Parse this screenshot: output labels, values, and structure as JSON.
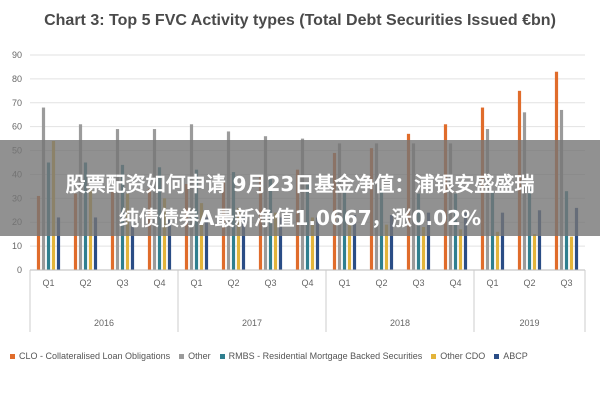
{
  "chart_data": {
    "type": "bar",
    "title": "Chart 3: Top 5 FVC Activity types (Total Debt Securities Issued €bn)",
    "ylim": [
      0,
      90
    ],
    "yticks": [
      "0",
      "10",
      "20",
      "30",
      "40",
      "50",
      "60",
      "70",
      "80",
      "90"
    ],
    "grid": true,
    "legend_position": "bottom",
    "categories": [
      "Q1",
      "Q2",
      "Q3",
      "Q4",
      "Q1",
      "Q2",
      "Q3",
      "Q4",
      "Q1",
      "Q2",
      "Q3",
      "Q4",
      "Q1",
      "Q2",
      "Q3"
    ],
    "years": [
      {
        "label": "2016",
        "quarters": 4
      },
      {
        "label": "2017",
        "quarters": 4
      },
      {
        "label": "2018",
        "quarters": 4
      },
      {
        "label": "2019",
        "quarters": 3
      }
    ],
    "series": [
      {
        "name": "CLO - Collateralised Loan Obligations",
        "color": "#e06c2b",
        "values": [
          31,
          32,
          33,
          34,
          36,
          37,
          39,
          42,
          49,
          51,
          57,
          61,
          68,
          75,
          83
        ]
      },
      {
        "name": "Other",
        "color": "#9b9b9b",
        "values": [
          68,
          61,
          59,
          59,
          61,
          58,
          56,
          55,
          53,
          53,
          53,
          53,
          59,
          66,
          67
        ]
      },
      {
        "name": "RMBS - Residential Mortgage Backed Securities",
        "color": "#2f7f8f",
        "values": [
          45,
          45,
          44,
          43,
          42,
          41,
          38,
          36,
          34,
          34,
          32,
          32,
          33,
          34,
          33
        ]
      },
      {
        "name": "Other CDO",
        "color": "#e3b43a",
        "values": [
          54,
          35,
          32,
          30,
          28,
          26,
          24,
          22,
          20,
          19,
          18,
          17,
          16,
          15,
          14
        ]
      },
      {
        "name": "ABCP",
        "color": "#2a4d86",
        "values": [
          22,
          22,
          21,
          21,
          22,
          22,
          22,
          22,
          23,
          23,
          24,
          24,
          24,
          25,
          26
        ]
      }
    ]
  },
  "overlay": {
    "line1": "股票配资如何申请 9月23日基金净值：浦银安盛盛瑞",
    "line2": "纯债债券A最新净值1.0667，涨0.02%"
  }
}
